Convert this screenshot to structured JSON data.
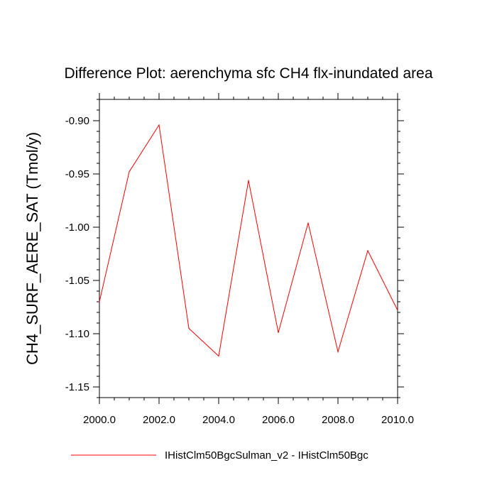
{
  "chart_data": {
    "type": "line",
    "title": "Difference Plot: aerenchyma sfc CH4 flx-inundated area",
    "xlabel": "",
    "ylabel": "CH4_SURF_AERE_SAT  (Tmol/y)",
    "xlim": [
      2000,
      2010
    ],
    "ylim": [
      -1.16,
      -0.88
    ],
    "x_ticks": [
      2000,
      2002,
      2004,
      2006,
      2008,
      2010
    ],
    "x_tick_labels": [
      "2000.0",
      "2002.0",
      "2004.0",
      "2006.0",
      "2008.0",
      "2010.0"
    ],
    "y_ticks": [
      -0.9,
      -0.95,
      -1.0,
      -1.05,
      -1.1,
      -1.15
    ],
    "y_tick_labels": [
      "-0.90",
      "-0.95",
      "-1.00",
      "-1.05",
      "-1.10",
      "-1.15"
    ],
    "grid": false,
    "legend_position": "bottom",
    "series": [
      {
        "name": "IHistClm50BgcSulman_v2 - IHistClm50Bgc",
        "color": "#ff0000",
        "x": [
          2000,
          2001,
          2002,
          2003,
          2004,
          2005,
          2006,
          2007,
          2008,
          2009,
          2010
        ],
        "y": [
          -1.07,
          -0.948,
          -0.904,
          -1.095,
          -1.121,
          -0.956,
          -1.099,
          -0.996,
          -1.117,
          -1.022,
          -1.078
        ]
      }
    ]
  }
}
